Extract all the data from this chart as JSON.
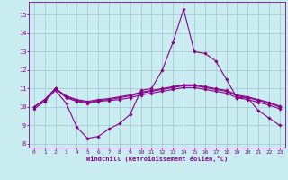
{
  "xlabel": "Windchill (Refroidissement éolien,°C)",
  "background_color": "#c8ecf0",
  "line_color": "#880088",
  "grid_color": "#a0b8c8",
  "xlim": [
    -0.5,
    23.5
  ],
  "ylim": [
    7.8,
    15.7
  ],
  "yticks": [
    8,
    9,
    10,
    11,
    12,
    13,
    14,
    15
  ],
  "xticks": [
    0,
    1,
    2,
    3,
    4,
    5,
    6,
    7,
    8,
    9,
    10,
    11,
    12,
    13,
    14,
    15,
    16,
    17,
    18,
    19,
    20,
    21,
    22,
    23
  ],
  "series": [
    {
      "x": [
        0,
        1,
        2,
        3,
        4,
        5,
        6,
        7,
        8,
        9,
        10,
        11,
        12,
        13,
        14,
        15,
        16,
        17,
        18,
        19,
        20,
        21,
        22,
        23
      ],
      "y": [
        9.9,
        10.3,
        10.9,
        10.2,
        8.9,
        8.3,
        8.4,
        8.8,
        9.1,
        9.6,
        10.9,
        11.0,
        12.0,
        13.5,
        15.3,
        13.0,
        12.9,
        12.5,
        11.5,
        10.5,
        10.5,
        9.8,
        9.4,
        9.0
      ]
    },
    {
      "x": [
        0,
        1,
        2,
        3,
        4,
        5,
        6,
        7,
        8,
        9,
        10,
        11,
        12,
        13,
        14,
        15,
        16,
        17,
        18,
        19,
        20,
        21,
        22,
        23
      ],
      "y": [
        10.0,
        10.4,
        11.0,
        10.5,
        10.3,
        10.2,
        10.3,
        10.35,
        10.4,
        10.5,
        10.65,
        10.75,
        10.85,
        10.95,
        11.05,
        11.05,
        10.95,
        10.85,
        10.75,
        10.5,
        10.4,
        10.25,
        10.1,
        9.9
      ]
    },
    {
      "x": [
        0,
        1,
        2,
        3,
        4,
        5,
        6,
        7,
        8,
        9,
        10,
        11,
        12,
        13,
        14,
        15,
        16,
        17,
        18,
        19,
        20,
        21,
        22,
        23
      ],
      "y": [
        10.0,
        10.4,
        11.0,
        10.55,
        10.35,
        10.25,
        10.35,
        10.4,
        10.5,
        10.6,
        10.75,
        10.85,
        10.95,
        11.05,
        11.15,
        11.15,
        11.05,
        10.95,
        10.85,
        10.6,
        10.5,
        10.35,
        10.2,
        10.0
      ]
    },
    {
      "x": [
        0,
        1,
        2,
        3,
        4,
        5,
        6,
        7,
        8,
        9,
        10,
        11,
        12,
        13,
        14,
        15,
        16,
        17,
        18,
        19,
        20,
        21,
        22,
        23
      ],
      "y": [
        10.0,
        10.4,
        11.0,
        10.6,
        10.4,
        10.3,
        10.4,
        10.45,
        10.55,
        10.65,
        10.8,
        10.9,
        11.0,
        11.1,
        11.2,
        11.2,
        11.1,
        11.0,
        10.9,
        10.65,
        10.55,
        10.4,
        10.25,
        10.05
      ]
    }
  ]
}
